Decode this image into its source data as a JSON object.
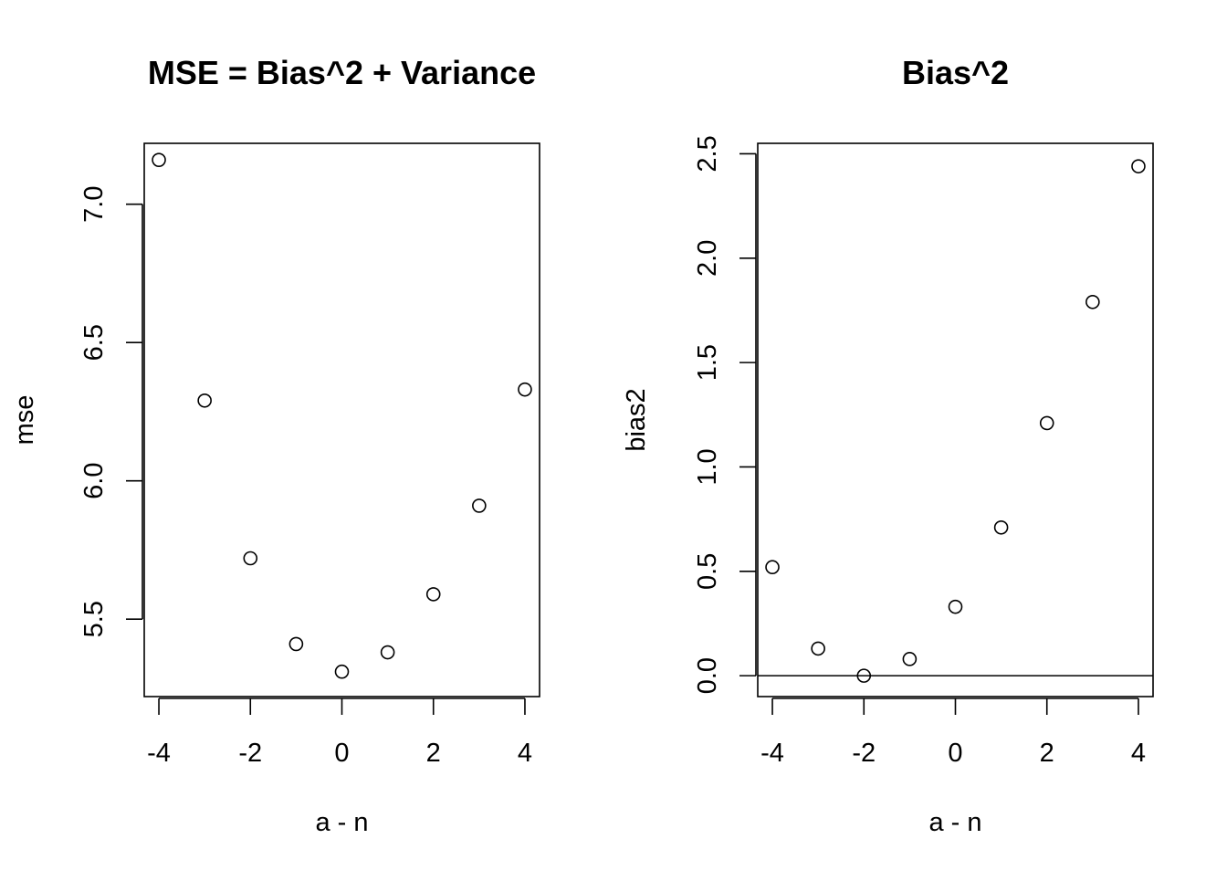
{
  "chart_data": [
    {
      "type": "scatter",
      "title": "MSE = Bias^2 + Variance",
      "xlabel": "a - n",
      "ylabel": "mse",
      "xlim": [
        -4.32,
        4.32
      ],
      "ylim": [
        5.22,
        7.22
      ],
      "xticks": [
        -4,
        -2,
        0,
        2,
        4
      ],
      "yticks": [
        5.5,
        6.0,
        6.5,
        7.0
      ],
      "xticklabels": [
        "-4",
        "-2",
        "0",
        "2",
        "4"
      ],
      "yticklabels": [
        "5.5",
        "6.0",
        "6.5",
        "7.0"
      ],
      "x": [
        -4,
        -3,
        -2,
        -1,
        0,
        1,
        2,
        3,
        4
      ],
      "y": [
        7.16,
        6.29,
        5.72,
        5.41,
        5.31,
        5.38,
        5.59,
        5.91,
        6.33
      ],
      "hline": null,
      "grid": false
    },
    {
      "type": "scatter",
      "title": "Bias^2",
      "xlabel": "a - n",
      "ylabel": "bias2",
      "xlim": [
        -4.32,
        4.32
      ],
      "ylim": [
        -0.1,
        2.55
      ],
      "xticks": [
        -4,
        -2,
        0,
        2,
        4
      ],
      "yticks": [
        0.0,
        0.5,
        1.0,
        1.5,
        2.0,
        2.5
      ],
      "xticklabels": [
        "-4",
        "-2",
        "0",
        "2",
        "4"
      ],
      "yticklabels": [
        "0.0",
        "0.5",
        "1.0",
        "1.5",
        "2.0",
        "2.5"
      ],
      "x": [
        -4,
        -3,
        -2,
        -1,
        0,
        1,
        2,
        3,
        4
      ],
      "y": [
        0.52,
        0.13,
        0.0,
        0.08,
        0.33,
        0.71,
        1.21,
        1.79,
        2.44
      ],
      "hline": 0,
      "grid": false
    }
  ]
}
